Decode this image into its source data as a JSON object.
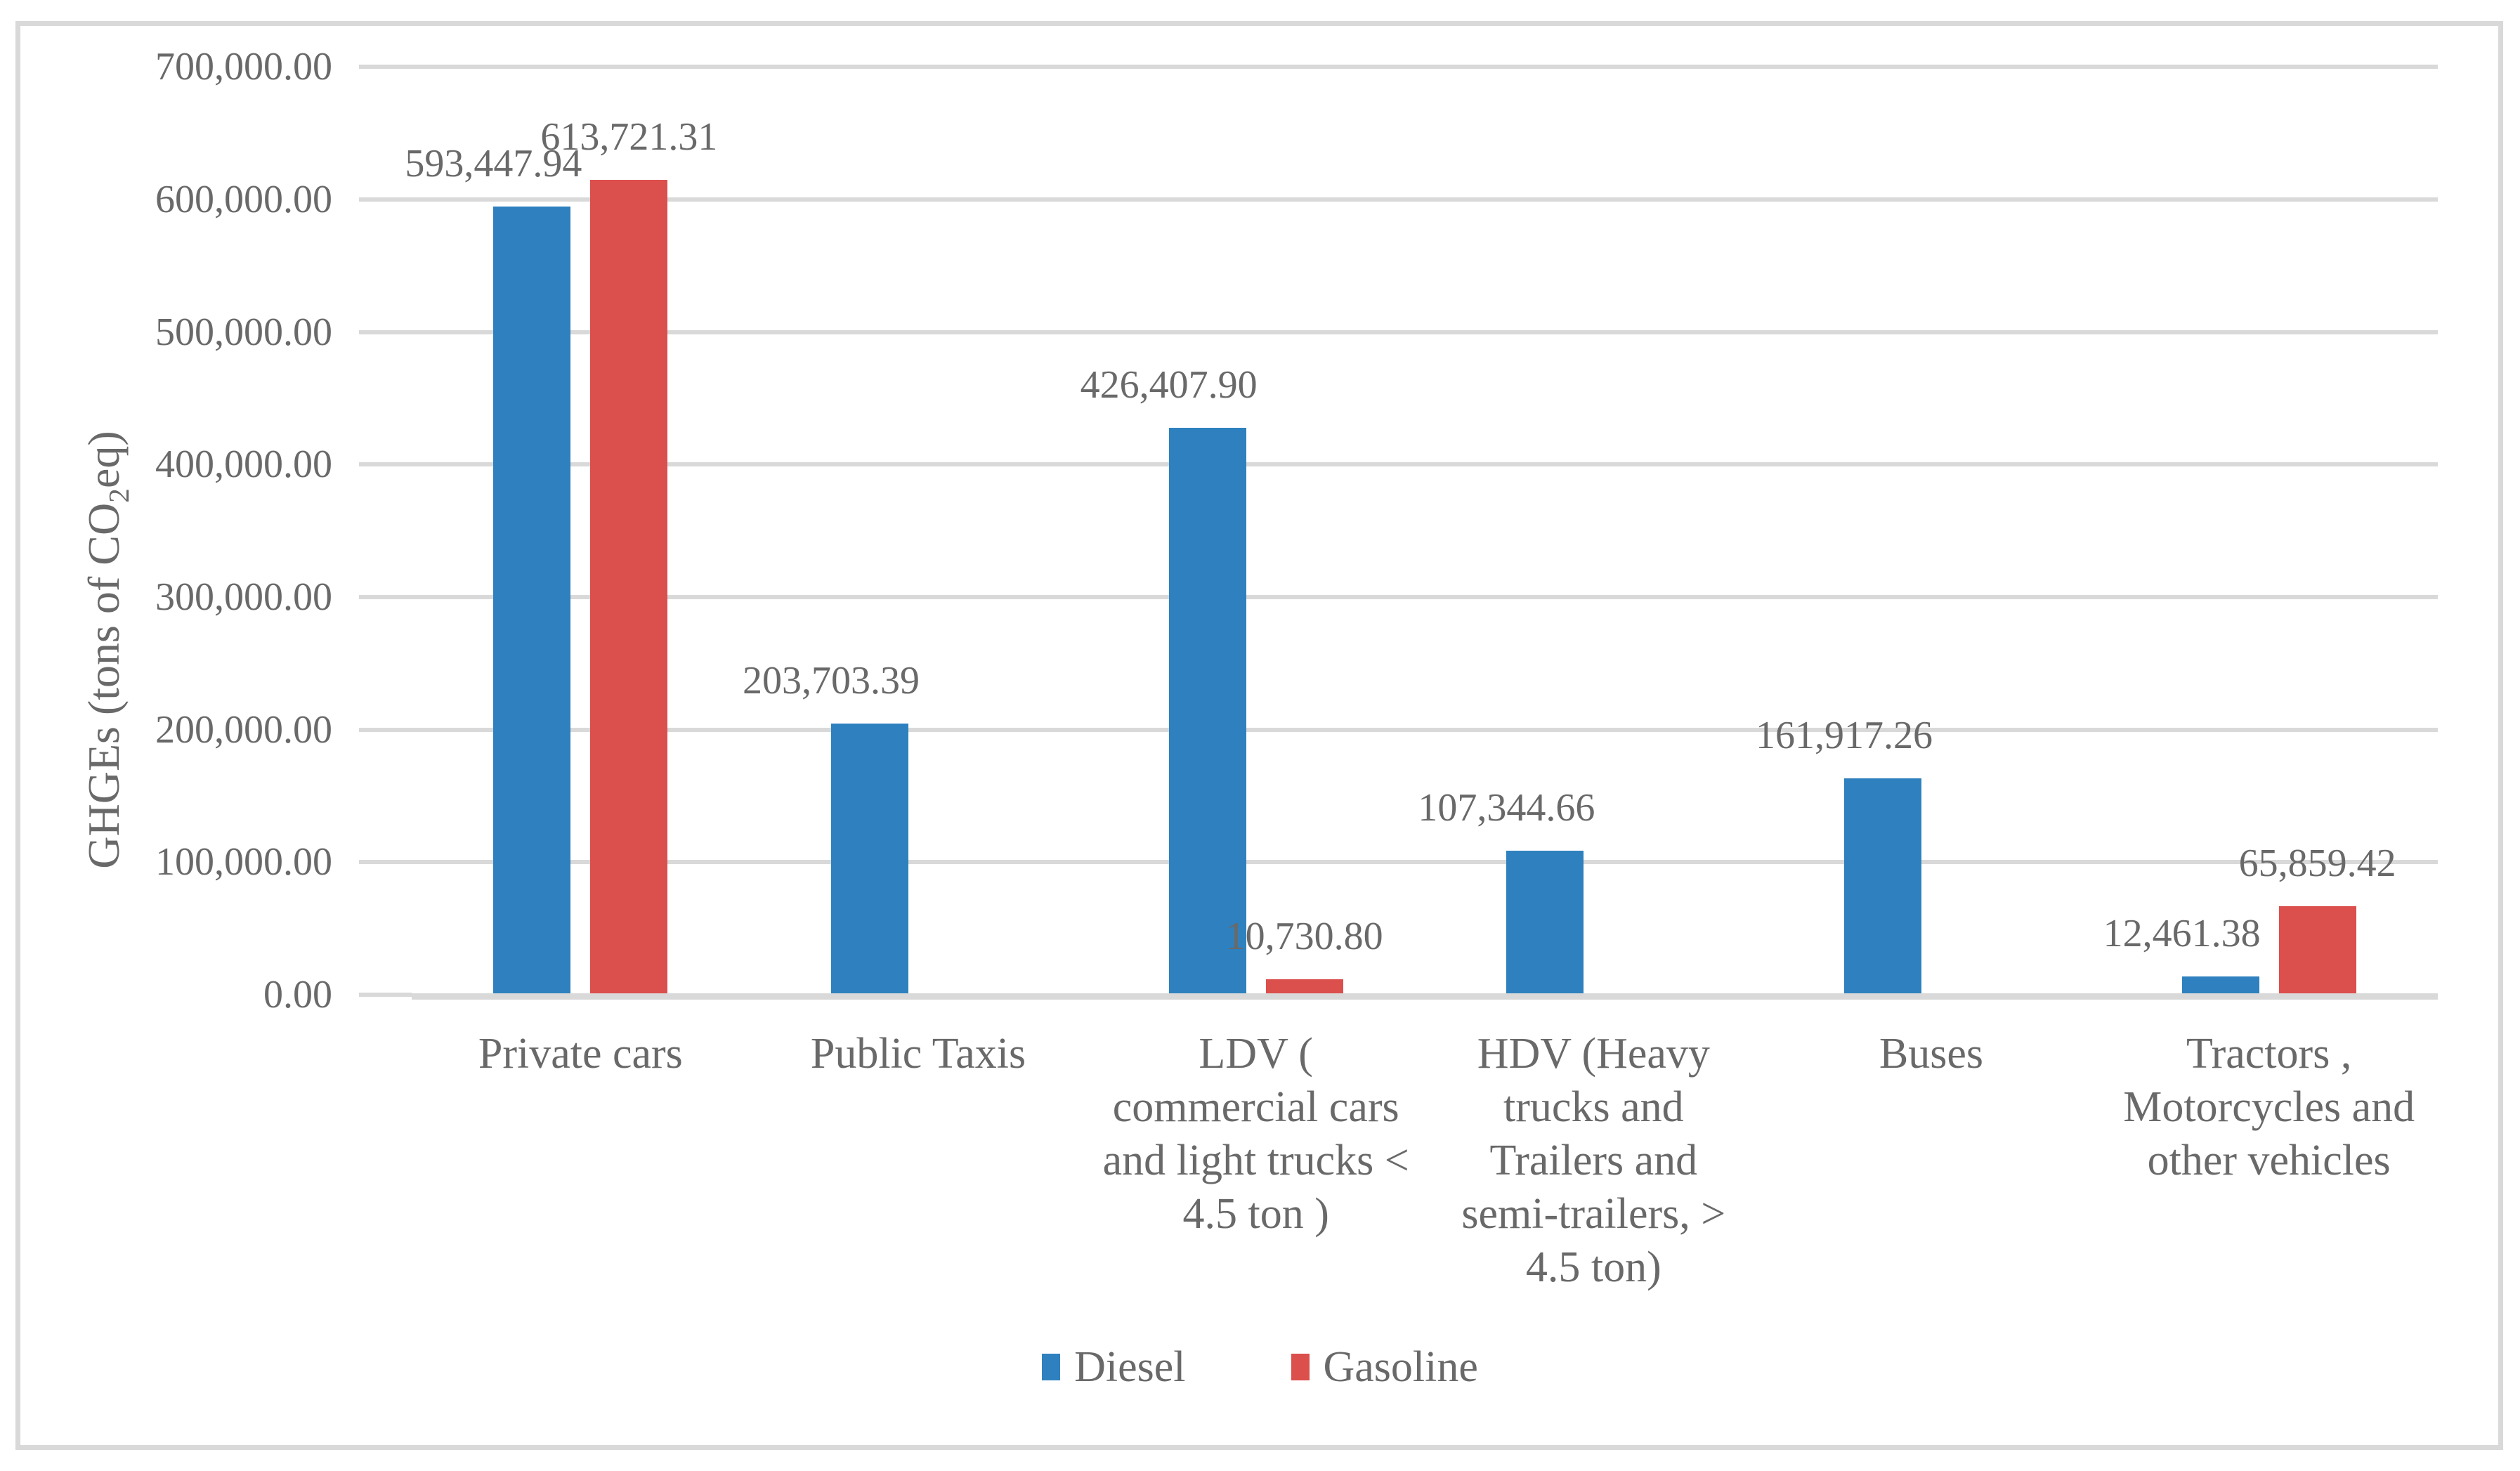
{
  "chart": {
    "y_axis": {
      "title_prefix": "GHGEs (tons of CO",
      "title_sub": "2",
      "title_suffix": "eq)",
      "tick_labels": [
        "0.00",
        "100,000.00",
        "200,000.00",
        "300,000.00",
        "400,000.00",
        "500,000.00",
        "600,000.00",
        "700,000.00"
      ]
    },
    "legend": [
      {
        "label": "Diesel",
        "color": "#2E81BE"
      },
      {
        "label": "Gasoline",
        "color": "#DB4F4C"
      }
    ]
  },
  "chart_data": {
    "type": "bar",
    "title": "",
    "xlabel": "",
    "ylabel": "GHGEs (tons of CO2eq)",
    "ylim": [
      0,
      700000
    ],
    "ytick_step": 100000,
    "grid": "horizontal",
    "legend_position": "bottom",
    "categories": [
      "Private cars",
      "Public Taxis",
      "LDV ( commercial cars and light trucks < 4.5 ton )",
      "HDV (Heavy trucks and Trailers and semi-trailers, > 4.5 ton)",
      "Buses",
      "Tractors , Motorcycles and other vehicles"
    ],
    "category_lines": [
      [
        "Private cars"
      ],
      [
        "Public Taxis"
      ],
      [
        "LDV (",
        "commercial cars",
        "and light trucks <",
        "4.5 ton )"
      ],
      [
        "HDV (Heavy",
        "trucks and",
        "Trailers and",
        "semi-trailers, >",
        "4.5 ton)"
      ],
      [
        "Buses"
      ],
      [
        "Tractors ,",
        "Motorcycles and",
        "other vehicles"
      ]
    ],
    "series": [
      {
        "name": "Diesel",
        "color": "#2E81BE",
        "values": [
          593447.94,
          203703.39,
          426407.9,
          107344.66,
          161917.26,
          12461.38
        ],
        "labels": [
          "593,447.94",
          "203,703.39",
          "426,407.90",
          "107,344.66",
          "161,917.26",
          "12,461.38"
        ]
      },
      {
        "name": "Gasoline",
        "color": "#DB4F4C",
        "values": [
          613721.31,
          0,
          10730.8,
          0,
          0,
          65859.42
        ],
        "labels": [
          "613,721.31",
          null,
          "10,730.80",
          null,
          null,
          "65,859.42"
        ]
      }
    ]
  }
}
